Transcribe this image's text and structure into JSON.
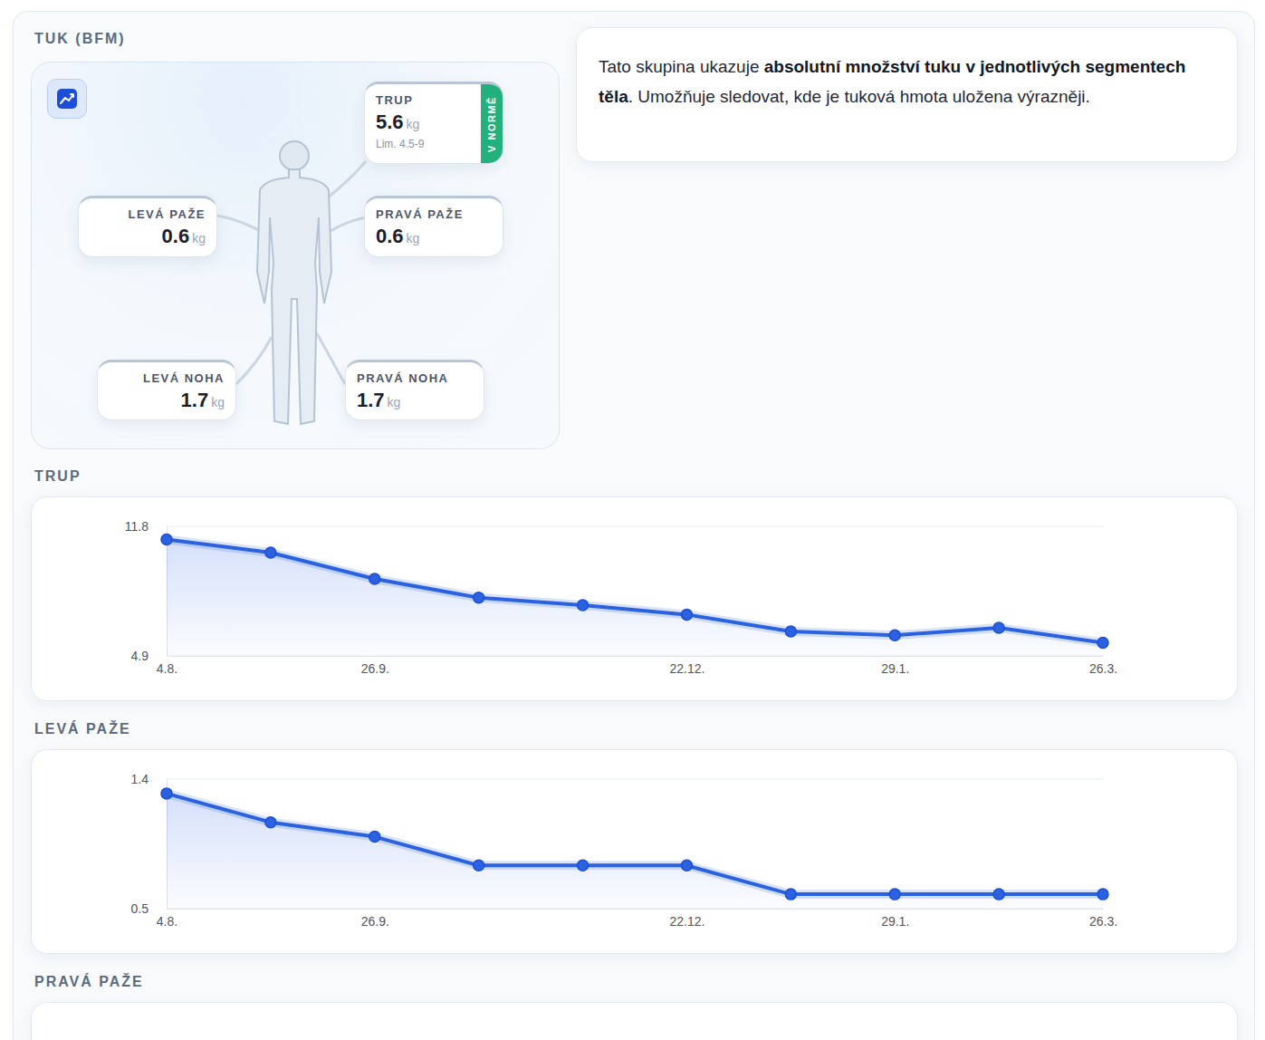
{
  "header": {
    "title": "TUK (BFM)"
  },
  "segments": [
    {
      "label": "TRUP",
      "value": 5.6,
      "unit": "kg",
      "limit": "Lim. 4.5-9",
      "status": "V NORMĚ"
    },
    {
      "label": "LEVÁ PAŽE",
      "value": 0.6,
      "unit": "kg"
    },
    {
      "label": "PRAVÁ PAŽE",
      "value": 0.6,
      "unit": "kg"
    },
    {
      "label": "LEVÁ NOHA",
      "value": 1.7,
      "unit": "kg"
    },
    {
      "label": "PRAVÁ NOHA",
      "value": 1.7,
      "unit": "kg"
    }
  ],
  "description": [
    {
      "text": "Tato skupina ukazuje ",
      "bold": false
    },
    {
      "text": "absolutní množství tuku v jednotlivých segmentech těla",
      "bold": true
    },
    {
      "text": ". Umožňuje sledovat, kde je tuková hmota uložena výrazněji.",
      "bold": false
    }
  ],
  "chart_data": [
    {
      "type": "line",
      "title": "TRUP",
      "categories": [
        "4.8.",
        null,
        "26.9.",
        null,
        null,
        "22.12.",
        null,
        "29.1.",
        null,
        "26.3."
      ],
      "values": [
        11.1,
        10.4,
        9.0,
        8.0,
        7.6,
        7.1,
        6.2,
        6.0,
        6.4,
        5.6
      ],
      "ylim": [
        4.9,
        11.8
      ],
      "yticks": [
        4.9,
        11.8
      ],
      "grid": true,
      "color": "#2a62e0",
      "marker": "circle"
    },
    {
      "type": "line",
      "title": "LEVÁ PAŽE",
      "categories": [
        "4.8.",
        null,
        "26.9.",
        null,
        null,
        "22.12.",
        null,
        "29.1.",
        null,
        "26.3."
      ],
      "values": [
        1.3,
        1.1,
        1.0,
        0.8,
        0.8,
        0.8,
        0.6,
        0.6,
        0.6,
        0.6
      ],
      "ylim": [
        0.5,
        1.4
      ],
      "yticks": [
        0.5,
        1.4
      ],
      "grid": true,
      "color": "#2a62e0",
      "marker": "circle"
    }
  ],
  "next_section": {
    "title": "PRAVÁ PAŽE"
  }
}
